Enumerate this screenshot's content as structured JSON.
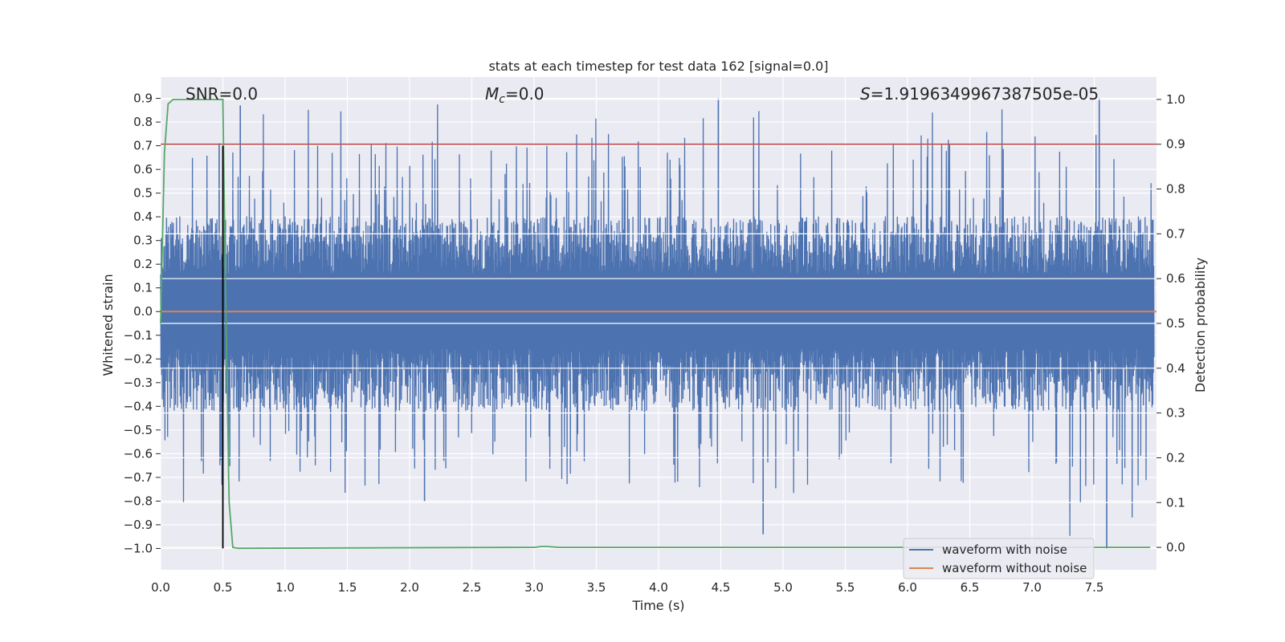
{
  "chart_data": {
    "type": "line",
    "title": "stats at each timestep for test data 162 [signal=0.0]",
    "xlabel": "Time (s)",
    "ylabel": "Whitened strain",
    "y2label": "Detection probability",
    "xlim": [
      0.0,
      8.0
    ],
    "ylim": [
      -1.09,
      0.99
    ],
    "y2lim": [
      -0.05,
      1.05
    ],
    "x_ticks": [
      "0.0",
      "0.5",
      "1.0",
      "1.5",
      "2.0",
      "2.5",
      "3.0",
      "3.5",
      "4.0",
      "4.5",
      "5.0",
      "5.5",
      "6.0",
      "6.5",
      "7.0",
      "7.5"
    ],
    "y_ticks": [
      "0.9",
      "0.8",
      "0.7",
      "0.6",
      "0.5",
      "0.4",
      "0.3",
      "0.2",
      "0.1",
      "0.0",
      "−0.1",
      "−0.2",
      "−0.3",
      "−0.4",
      "−0.5",
      "−0.6",
      "−0.7",
      "−0.8",
      "−0.9",
      "−1.0"
    ],
    "y2_ticks": [
      "1.0",
      "0.9",
      "0.8",
      "0.7",
      "0.6",
      "0.5",
      "0.4",
      "0.3",
      "0.2",
      "0.1",
      "0.0"
    ],
    "annotations": {
      "snr": "SNR=0.0",
      "mc_symbol": "M",
      "mc_sub": "c",
      "mc_value": "=0.0",
      "s_symbol": "S",
      "s_value": "=1.9196349967387505e-05"
    },
    "series": [
      {
        "name": "waveform with noise",
        "color": "#4c72b0",
        "kind": "noise",
        "upper_typical": 0.35,
        "lower_typical": -0.35,
        "max": 0.9,
        "min": -1.0
      },
      {
        "name": "waveform without noise",
        "color": "#dd8452",
        "kind": "flat",
        "value": 0.0
      },
      {
        "name": "detection probability",
        "color": "#55a868",
        "axis": "right",
        "points": [
          [
            0.0,
            0.5
          ],
          [
            0.03,
            0.88
          ],
          [
            0.06,
            0.99
          ],
          [
            0.1,
            1.0
          ],
          [
            0.45,
            1.0
          ],
          [
            0.5,
            1.0
          ],
          [
            0.52,
            0.6
          ],
          [
            0.55,
            0.1
          ],
          [
            0.58,
            0.0
          ],
          [
            0.62,
            -0.002
          ],
          [
            3.0,
            0.0
          ],
          [
            3.06,
            0.002
          ],
          [
            3.1,
            0.002
          ],
          [
            3.2,
            0.0
          ],
          [
            7.95,
            0.0
          ]
        ]
      },
      {
        "name": "threshold",
        "color": "#c44e52",
        "axis": "right",
        "value": 0.9
      },
      {
        "name": "detection marker",
        "color": "#000000",
        "x": 0.5,
        "y_from": -1.0,
        "y_to": 0.7
      }
    ],
    "legend": {
      "position": "lower-right",
      "entries": [
        "waveform with noise",
        "waveform without noise"
      ]
    }
  }
}
